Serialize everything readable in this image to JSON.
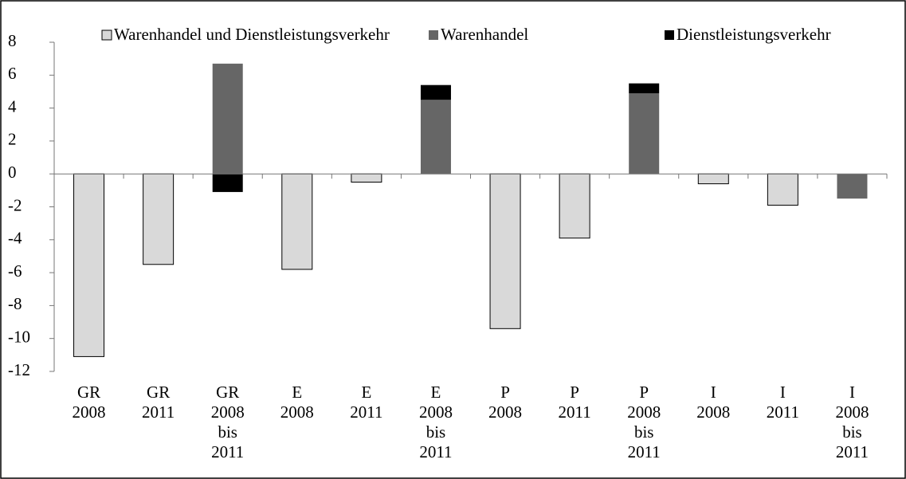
{
  "chart_data": {
    "type": "bar",
    "stacked": true,
    "categories": [
      [
        "GR",
        "2008"
      ],
      [
        "GR",
        "2011"
      ],
      [
        "GR",
        "2008",
        "bis",
        "2011"
      ],
      [
        "E",
        "2008"
      ],
      [
        "E",
        "2011"
      ],
      [
        "E",
        "2008",
        "bis",
        "2011"
      ],
      [
        "P",
        "2008"
      ],
      [
        "P",
        "2011"
      ],
      [
        "P",
        "2008",
        "bis",
        "2011"
      ],
      [
        "I",
        "2008"
      ],
      [
        "I",
        "2011"
      ],
      [
        "I",
        "2008",
        "bis",
        "2011"
      ]
    ],
    "series": [
      {
        "name": "Warenhandel und Dienstleistungsverkehr",
        "color": "#d9d9d9",
        "values": [
          -11.1,
          -5.5,
          null,
          -5.8,
          -0.5,
          null,
          -9.4,
          -3.9,
          null,
          -0.6,
          -1.9,
          null
        ]
      },
      {
        "name": "Warenhandel",
        "color": "#666666",
        "values": [
          null,
          null,
          6.7,
          null,
          null,
          4.5,
          null,
          null,
          4.9,
          null,
          null,
          -1.5
        ]
      },
      {
        "name": "Dienstleistungsverkehr",
        "color": "#000000",
        "values": [
          null,
          null,
          -1.1,
          null,
          null,
          0.9,
          null,
          null,
          0.6,
          null,
          null,
          null
        ]
      }
    ],
    "ylim": [
      -12,
      8
    ],
    "yticks": [
      -12,
      -10,
      -8,
      -6,
      -4,
      -2,
      0,
      2,
      4,
      6,
      8
    ],
    "legend": "top"
  }
}
